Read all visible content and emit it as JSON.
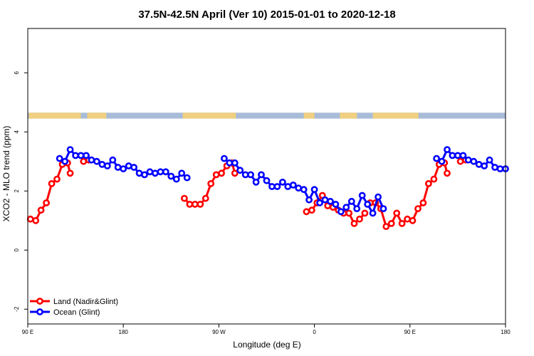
{
  "chart_data": {
    "type": "line",
    "title": "37.5N-42.5N April (Ver 10)   2015-01-01 to 2020-12-18",
    "xlabel": "Longitude (deg E)",
    "ylabel": "XCO2 - MLO trend (ppm)",
    "xlim": [
      90,
      540
    ],
    "ylim": [
      -2.5,
      7.5
    ],
    "x_ticks": [
      {
        "value": 90,
        "label": "90 E"
      },
      {
        "value": 180,
        "label": "180"
      },
      {
        "value": 270,
        "label": "90 W"
      },
      {
        "value": 360,
        "label": "0"
      },
      {
        "value": 450,
        "label": "90 E"
      },
      {
        "value": 540,
        "label": "180"
      }
    ],
    "y_ticks": [
      {
        "value": -2,
        "label": "-2"
      },
      {
        "value": 0,
        "label": "0"
      },
      {
        "value": 2,
        "label": "2"
      },
      {
        "value": 4,
        "label": "4"
      },
      {
        "value": 6,
        "label": "6"
      }
    ],
    "land_mask": {
      "y_range": [
        4.45,
        4.65
      ],
      "land_color": "#f0d080",
      "ocean_color": "#a8bcd8",
      "land_longitudes": [
        [
          91,
          140
        ],
        [
          146,
          164
        ],
        [
          236,
          286
        ],
        [
          350,
          360
        ],
        [
          384,
          400
        ],
        [
          415,
          458
        ]
      ]
    },
    "series": [
      {
        "name": "Land (Nadir&Glint)",
        "color": "#ff0000",
        "segments": [
          [
            [
              92.5,
              1.05
            ],
            [
              97.5,
              1.0
            ],
            [
              102.5,
              1.35
            ],
            [
              107.5,
              1.6
            ],
            [
              112.5,
              2.25
            ],
            [
              117.5,
              2.4
            ],
            [
              122.5,
              2.9
            ],
            [
              127.5,
              2.95
            ],
            [
              130,
              2.6
            ]
          ],
          [
            [
              142.5,
              3.0
            ],
            [
              147.5,
              3.05
            ]
          ],
          [
            [
              237.5,
              1.75
            ],
            [
              242.5,
              1.55
            ],
            [
              247.5,
              1.55
            ],
            [
              252.5,
              1.55
            ],
            [
              257.5,
              1.75
            ],
            [
              262.5,
              2.25
            ],
            [
              267.5,
              2.55
            ],
            [
              272.5,
              2.6
            ],
            [
              277.5,
              2.85
            ],
            [
              282.5,
              2.95
            ],
            [
              285,
              2.6
            ]
          ],
          [
            [
              352.5,
              1.3
            ],
            [
              357.5,
              1.35
            ],
            [
              362.5,
              1.6
            ],
            [
              367.5,
              1.85
            ],
            [
              372.5,
              1.5
            ],
            [
              377.5,
              1.45
            ],
            [
              382.5,
              1.35
            ],
            [
              387.5,
              1.25
            ],
            [
              392.5,
              1.25
            ],
            [
              397.5,
              0.9
            ],
            [
              402.5,
              1.05
            ],
            [
              407.5,
              1.25
            ]
          ],
          [
            [
              412.5,
              1.6
            ],
            [
              417.5,
              1.6
            ],
            [
              422.5,
              1.4
            ],
            [
              427.5,
              0.8
            ],
            [
              432.5,
              0.9
            ],
            [
              437.5,
              1.25
            ],
            [
              442.5,
              0.9
            ],
            [
              447.5,
              1.05
            ],
            [
              452.5,
              1.0
            ],
            [
              457.5,
              1.4
            ],
            [
              462.5,
              1.6
            ],
            [
              467.5,
              2.25
            ],
            [
              472.5,
              2.4
            ],
            [
              477.5,
              2.9
            ],
            [
              482.5,
              2.95
            ],
            [
              485,
              2.6
            ]
          ],
          [
            [
              497.5,
              3.0
            ],
            [
              502.5,
              3.05
            ]
          ]
        ]
      },
      {
        "name": "Ocean (Glint)",
        "color": "#0000ff",
        "segments": [
          [
            [
              120,
              3.1
            ],
            [
              125,
              3.0
            ],
            [
              130,
              3.4
            ],
            [
              135,
              3.2
            ],
            [
              140,
              3.2
            ],
            [
              145,
              3.2
            ],
            [
              150,
              3.05
            ],
            [
              155,
              3.0
            ],
            [
              160,
              2.9
            ],
            [
              165,
              2.85
            ],
            [
              170,
              3.05
            ],
            [
              175,
              2.8
            ],
            [
              180,
              2.75
            ],
            [
              185,
              2.85
            ],
            [
              190,
              2.8
            ],
            [
              195,
              2.6
            ],
            [
              200,
              2.55
            ],
            [
              205,
              2.65
            ],
            [
              210,
              2.6
            ],
            [
              215,
              2.65
            ],
            [
              220,
              2.65
            ],
            [
              225,
              2.5
            ],
            [
              230,
              2.4
            ],
            [
              235,
              2.6
            ],
            [
              240,
              2.45
            ]
          ],
          [
            [
              275,
              3.1
            ],
            [
              280,
              2.95
            ],
            [
              285,
              2.95
            ],
            [
              290,
              2.7
            ],
            [
              295,
              2.55
            ],
            [
              300,
              2.55
            ],
            [
              305,
              2.3
            ],
            [
              310,
              2.55
            ],
            [
              315,
              2.35
            ],
            [
              320,
              2.15
            ],
            [
              325,
              2.15
            ],
            [
              330,
              2.3
            ],
            [
              335,
              2.15
            ],
            [
              340,
              2.2
            ],
            [
              345,
              2.1
            ],
            [
              350,
              2.05
            ],
            [
              355,
              1.7
            ],
            [
              360,
              2.05
            ],
            [
              365,
              1.6
            ],
            [
              370,
              1.7
            ],
            [
              375,
              1.65
            ],
            [
              380,
              1.55
            ],
            [
              385,
              1.3
            ],
            [
              390,
              1.45
            ],
            [
              395,
              1.65
            ],
            [
              400,
              1.4
            ],
            [
              405,
              1.85
            ],
            [
              410,
              1.55
            ],
            [
              415,
              1.25
            ],
            [
              420,
              1.8
            ],
            [
              425,
              1.4
            ]
          ],
          [
            [
              475,
              3.1
            ],
            [
              480,
              3.0
            ],
            [
              485,
              3.4
            ],
            [
              490,
              3.2
            ],
            [
              495,
              3.2
            ],
            [
              500,
              3.2
            ],
            [
              505,
              3.05
            ],
            [
              510,
              3.0
            ],
            [
              515,
              2.9
            ],
            [
              520,
              2.85
            ],
            [
              525,
              3.05
            ],
            [
              530,
              2.8
            ],
            [
              535,
              2.75
            ],
            [
              540,
              2.75
            ]
          ]
        ]
      }
    ],
    "legend": {
      "position": "bottom-left"
    }
  }
}
